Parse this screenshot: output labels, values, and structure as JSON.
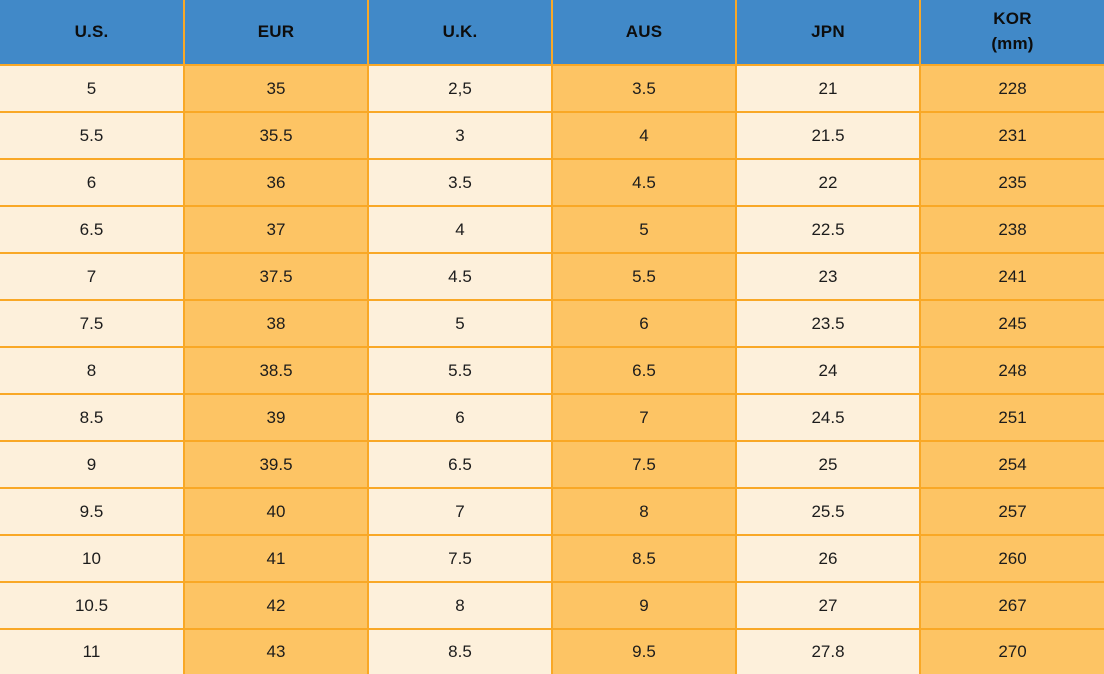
{
  "colors": {
    "header_bg": "#4189C8",
    "cream_cell": "#FDF0DB",
    "orange_cell": "#FDC464",
    "grid_border": "#F9A826",
    "header_text": "#0d0d0d",
    "cell_text": "#1c1c1c"
  },
  "chart_data": {
    "type": "table",
    "columns": [
      "U.S.",
      "EUR",
      "U.K.",
      "AUS",
      "JPN",
      "KOR\n(mm)"
    ],
    "rows": [
      [
        "5",
        "35",
        "2,5",
        "3.5",
        "21",
        "228"
      ],
      [
        "5.5",
        "35.5",
        "3",
        "4",
        "21.5",
        "231"
      ],
      [
        "6",
        "36",
        "3.5",
        "4.5",
        "22",
        "235"
      ],
      [
        "6.5",
        "37",
        "4",
        "5",
        "22.5",
        "238"
      ],
      [
        "7",
        "37.5",
        "4.5",
        "5.5",
        "23",
        "241"
      ],
      [
        "7.5",
        "38",
        "5",
        "6",
        "23.5",
        "245"
      ],
      [
        "8",
        "38.5",
        "5.5",
        "6.5",
        "24",
        "248"
      ],
      [
        "8.5",
        "39",
        "6",
        "7",
        "24.5",
        "251"
      ],
      [
        "9",
        "39.5",
        "6.5",
        "7.5",
        "25",
        "254"
      ],
      [
        "9.5",
        "40",
        "7",
        "8",
        "25.5",
        "257"
      ],
      [
        "10",
        "41",
        "7.5",
        "8.5",
        "26",
        "260"
      ],
      [
        "10.5",
        "42",
        "8",
        "9",
        "27",
        "267"
      ],
      [
        "11",
        "43",
        "8.5",
        "9.5",
        "27.8",
        "270"
      ]
    ]
  }
}
